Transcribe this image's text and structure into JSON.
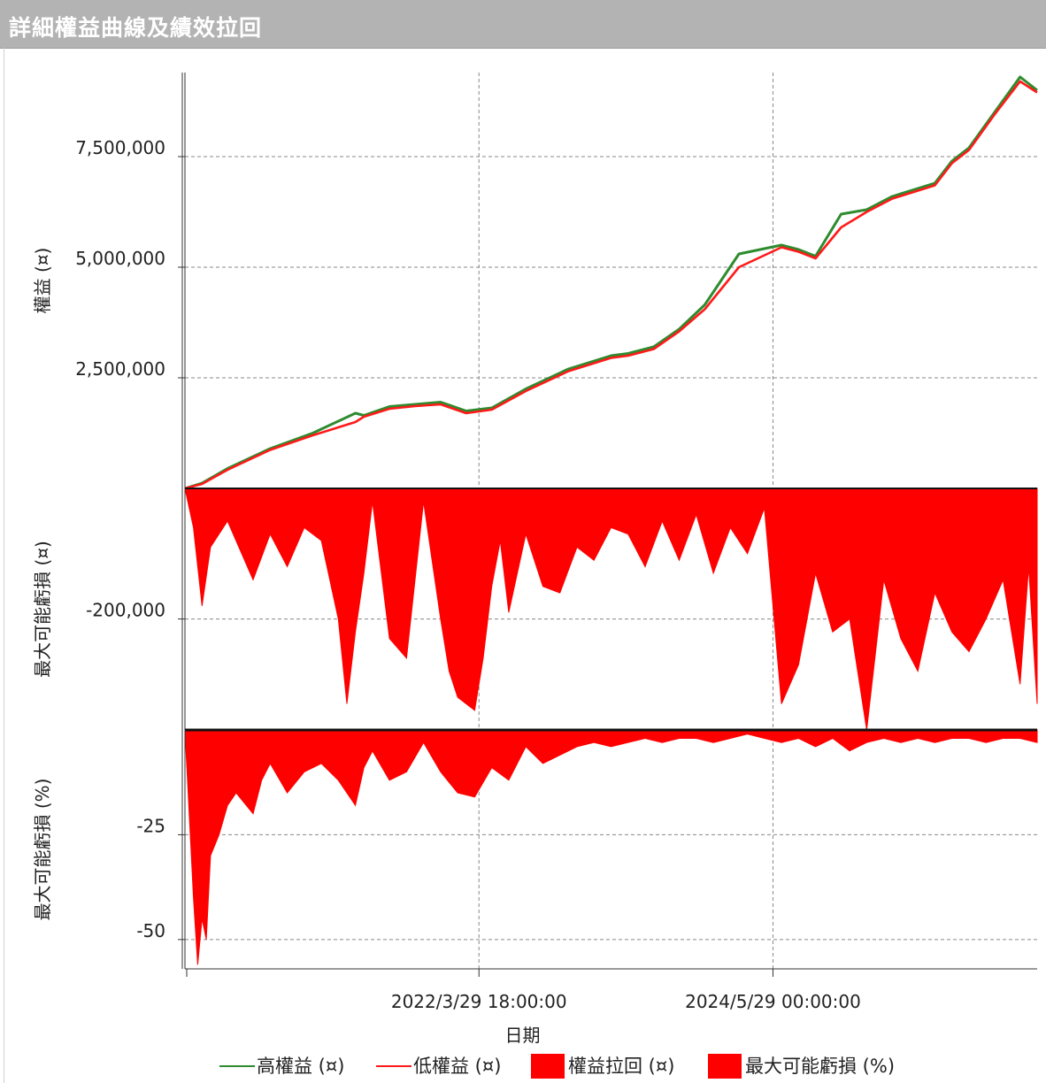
{
  "window": {
    "title": "詳細權益曲線及績效拉回"
  },
  "colors": {
    "high_equity": "#2e8b2e",
    "low_equity": "#ff1a1a",
    "drawdown_fill": "#ff0000",
    "grid": "#888888"
  },
  "chart_data": [
    {
      "type": "line",
      "panel": "equity",
      "ylabel": "權益 (¤)",
      "yticks": [
        "7,500,000",
        "5,000,000",
        "2,500,000"
      ],
      "ytick_values": [
        7500000,
        5000000,
        2500000
      ],
      "ylim": [
        0,
        9400000
      ],
      "xlim": [
        0,
        100
      ],
      "series": [
        {
          "name": "高權益 (¤)",
          "x": [
            0,
            2,
            5,
            10,
            15,
            20,
            21,
            24,
            27,
            30,
            33,
            36,
            40,
            45,
            50,
            52,
            55,
            58,
            61,
            65,
            70,
            72,
            74,
            77,
            80,
            83,
            88,
            90,
            92,
            95,
            98,
            100
          ],
          "values": [
            0,
            120000,
            450000,
            900000,
            1250000,
            1700000,
            1650000,
            1850000,
            1900000,
            1950000,
            1750000,
            1820000,
            2250000,
            2700000,
            3000000,
            3050000,
            3200000,
            3600000,
            4150000,
            5300000,
            5500000,
            5400000,
            5250000,
            6200000,
            6300000,
            6600000,
            6900000,
            7400000,
            7700000,
            8500000,
            9300000,
            9000000
          ]
        },
        {
          "name": "低權益 (¤)",
          "x": [
            0,
            2,
            5,
            10,
            15,
            20,
            21,
            24,
            27,
            30,
            33,
            36,
            40,
            45,
            50,
            52,
            55,
            58,
            61,
            65,
            70,
            72,
            74,
            77,
            80,
            83,
            88,
            90,
            92,
            95,
            98,
            100
          ],
          "values": [
            0,
            100000,
            420000,
            870000,
            1200000,
            1500000,
            1620000,
            1800000,
            1860000,
            1900000,
            1700000,
            1780000,
            2200000,
            2650000,
            2950000,
            3000000,
            3150000,
            3550000,
            4050000,
            5000000,
            5450000,
            5350000,
            5200000,
            5900000,
            6250000,
            6550000,
            6850000,
            7350000,
            7650000,
            8450000,
            9200000,
            8950000
          ]
        }
      ]
    },
    {
      "type": "area",
      "panel": "drawdown_value",
      "ylabel": "最大可能虧損 (¤)",
      "yticks": [
        "-200,000"
      ],
      "ytick_values": [
        -200000
      ],
      "ylim": [
        -370000,
        0
      ],
      "xlim": [
        0,
        100
      ],
      "series": [
        {
          "name": "權益拉回 (¤)",
          "x": [
            0,
            1,
            2,
            3,
            5,
            8,
            10,
            12,
            14,
            16,
            18,
            19,
            20,
            21,
            22,
            24,
            26,
            28,
            30,
            31,
            32,
            34,
            35,
            36,
            37,
            38,
            40,
            42,
            44,
            46,
            48,
            50,
            52,
            54,
            56,
            58,
            60,
            62,
            64,
            66,
            68,
            70,
            72,
            74,
            76,
            78,
            80,
            82,
            84,
            86,
            88,
            90,
            92,
            94,
            96,
            98,
            99,
            100
          ],
          "values": [
            0,
            -60000,
            -180000,
            -90000,
            -50000,
            -140000,
            -70000,
            -120000,
            -60000,
            -80000,
            -200000,
            -330000,
            -220000,
            -130000,
            -20000,
            -230000,
            -260000,
            -20000,
            -200000,
            -280000,
            -320000,
            -340000,
            -260000,
            -150000,
            -80000,
            -190000,
            -70000,
            -150000,
            -160000,
            -90000,
            -110000,
            -60000,
            -70000,
            -120000,
            -50000,
            -110000,
            -40000,
            -130000,
            -60000,
            -100000,
            -30000,
            -330000,
            -270000,
            -130000,
            -220000,
            -200000,
            -370000,
            -140000,
            -230000,
            -280000,
            -160000,
            -220000,
            -250000,
            -200000,
            -140000,
            -300000,
            -120000,
            -330000
          ]
        }
      ]
    },
    {
      "type": "area",
      "panel": "drawdown_percent",
      "ylabel": "最大可能虧損 (%)",
      "yticks": [
        "-25",
        "-50"
      ],
      "ytick_values": [
        -25,
        -50
      ],
      "ylim": [
        -57,
        0
      ],
      "xlim": [
        0,
        100
      ],
      "xlabel": "日期",
      "xticks": [
        "2022/3/29 18:00:00",
        "2024/5/29 00:00:00"
      ],
      "xtick_values": [
        34.5,
        69
      ],
      "series": [
        {
          "name": "最大可能虧損 (%)",
          "x": [
            0,
            0.5,
            1,
            1.5,
            2,
            2.5,
            3,
            4,
            5,
            6,
            8,
            9,
            10,
            12,
            14,
            16,
            18,
            20,
            21,
            22,
            24,
            26,
            28,
            30,
            32,
            34,
            36,
            38,
            40,
            42,
            44,
            46,
            48,
            50,
            52,
            54,
            56,
            58,
            60,
            62,
            64,
            66,
            68,
            70,
            72,
            74,
            76,
            78,
            80,
            82,
            84,
            86,
            88,
            90,
            92,
            94,
            96,
            98,
            100
          ],
          "values": [
            0,
            -20,
            -40,
            -56,
            -45,
            -50,
            -30,
            -25,
            -18,
            -15,
            -20,
            -12,
            -8,
            -15,
            -10,
            -8,
            -12,
            -18,
            -9,
            -5,
            -12,
            -10,
            -3,
            -10,
            -15,
            -16,
            -9,
            -12,
            -4,
            -8,
            -6,
            -4,
            -3,
            -4,
            -3,
            -2,
            -3,
            -2,
            -2,
            -3,
            -2,
            -1,
            -2,
            -3,
            -2,
            -4,
            -2,
            -5,
            -3,
            -2,
            -3,
            -2,
            -3,
            -2,
            -2,
            -3,
            -2,
            -2,
            -3
          ]
        }
      ]
    }
  ],
  "legend": {
    "items": [
      {
        "label": "高權益 (¤)"
      },
      {
        "label": "低權益 (¤)"
      },
      {
        "label": "權益拉回 (¤)"
      },
      {
        "label": "最大可能虧損 (%)"
      }
    ]
  }
}
